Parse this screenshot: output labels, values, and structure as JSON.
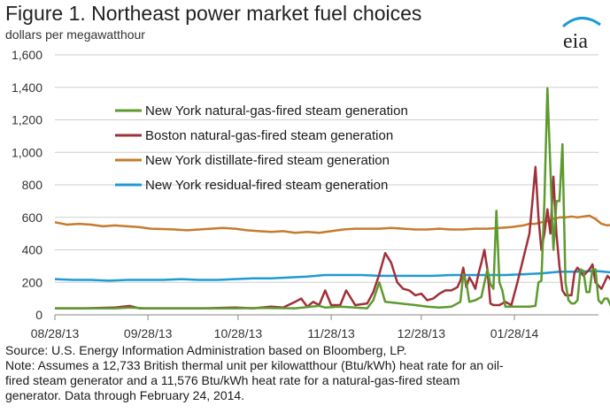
{
  "header": {
    "title": "Figure 1. Northeast power market fuel choices",
    "units": "dollars per megawatthour",
    "logo_text": "eia"
  },
  "footer": {
    "source": "Source:  U.S. Energy Information Administration based on Bloomberg, LP.",
    "note_line1": "Note:   Assumes a 12,733 British thermal unit per kilowatthour  (Btu/kWh) heat rate for an oil-",
    "note_line2": "fired steam generator and a 11,576 Btu/kWh heat rate for a natural-gas-fired steam",
    "note_line3": "generator. Data through February 24, 2014."
  },
  "colors": {
    "ny_gas": "#5d9a2f",
    "boston_gas": "#a0303a",
    "ny_distillate": "#c77b2c",
    "ny_residual": "#1f9ad6",
    "gridline": "#cfcfcf",
    "axis": "#888888",
    "logo_arc": "#1f9ad6"
  },
  "chart_data": {
    "type": "line",
    "x_unit": "days since 08/28/13",
    "xlim": [
      0,
      181
    ],
    "ylim": [
      0,
      1600
    ],
    "yticks": [
      0,
      200,
      400,
      600,
      800,
      1000,
      1200,
      1400,
      1600
    ],
    "ytick_labels": [
      "0",
      "200",
      "400",
      "600",
      "800",
      "1,000",
      "1,200",
      "1,400",
      "1,600"
    ],
    "xticks": [
      0,
      31,
      61,
      92,
      122,
      153
    ],
    "xtick_labels": [
      "08/28/13",
      "09/28/13",
      "10/28/13",
      "11/28/13",
      "12/28/13",
      "01/28/14"
    ],
    "grid": "horizontal",
    "legend_position": "top-left",
    "series": [
      {
        "name": "New York natural-gas-fired steam generation",
        "color_key": "ny_gas",
        "points": [
          [
            0,
            40
          ],
          [
            10,
            40
          ],
          [
            20,
            40
          ],
          [
            25,
            45
          ],
          [
            30,
            40
          ],
          [
            40,
            40
          ],
          [
            50,
            40
          ],
          [
            60,
            40
          ],
          [
            70,
            42
          ],
          [
            80,
            40
          ],
          [
            88,
            55
          ],
          [
            90,
            45
          ],
          [
            95,
            50
          ],
          [
            100,
            45
          ],
          [
            104,
            40
          ],
          [
            106,
            90
          ],
          [
            108,
            200
          ],
          [
            110,
            80
          ],
          [
            115,
            70
          ],
          [
            120,
            60
          ],
          [
            124,
            50
          ],
          [
            128,
            45
          ],
          [
            132,
            50
          ],
          [
            135,
            80
          ],
          [
            136,
            250
          ],
          [
            137,
            200
          ],
          [
            138,
            80
          ],
          [
            140,
            90
          ],
          [
            142,
            110
          ],
          [
            144,
            280
          ],
          [
            145,
            190
          ],
          [
            146,
            160
          ],
          [
            147,
            640
          ],
          [
            148,
            200
          ],
          [
            149,
            150
          ],
          [
            150,
            50
          ],
          [
            155,
            50
          ],
          [
            158,
            50
          ],
          [
            160,
            55
          ],
          [
            161,
            200
          ],
          [
            162,
            210
          ],
          [
            163,
            700
          ],
          [
            164,
            1395
          ],
          [
            165,
            900
          ],
          [
            166,
            400
          ],
          [
            167,
            700
          ],
          [
            168,
            700
          ],
          [
            169,
            1050
          ],
          [
            170,
            200
          ],
          [
            171,
            90
          ],
          [
            172,
            70
          ],
          [
            173,
            70
          ],
          [
            174,
            90
          ],
          [
            175,
            280
          ],
          [
            176,
            270
          ],
          [
            177,
            140
          ],
          [
            178,
            140
          ],
          [
            179,
            280
          ],
          [
            180,
            280
          ],
          [
            181,
            90
          ],
          [
            182,
            70
          ],
          [
            183,
            100
          ],
          [
            184,
            100
          ],
          [
            185,
            60
          ],
          [
            186,
            70
          ],
          [
            188,
            85
          ],
          [
            190,
            85
          ]
        ]
      },
      {
        "name": "Boston natural-gas-fired steam generation",
        "color_key": "boston_gas",
        "points": [
          [
            0,
            40
          ],
          [
            10,
            40
          ],
          [
            20,
            45
          ],
          [
            25,
            55
          ],
          [
            28,
            40
          ],
          [
            40,
            40
          ],
          [
            50,
            40
          ],
          [
            60,
            45
          ],
          [
            66,
            40
          ],
          [
            72,
            50
          ],
          [
            76,
            45
          ],
          [
            80,
            80
          ],
          [
            82,
            100
          ],
          [
            84,
            50
          ],
          [
            86,
            80
          ],
          [
            88,
            60
          ],
          [
            90,
            150
          ],
          [
            92,
            60
          ],
          [
            95,
            60
          ],
          [
            97,
            150
          ],
          [
            100,
            60
          ],
          [
            104,
            70
          ],
          [
            106,
            140
          ],
          [
            108,
            250
          ],
          [
            110,
            380
          ],
          [
            112,
            320
          ],
          [
            114,
            200
          ],
          [
            116,
            160
          ],
          [
            118,
            150
          ],
          [
            120,
            120
          ],
          [
            122,
            130
          ],
          [
            124,
            90
          ],
          [
            126,
            100
          ],
          [
            128,
            130
          ],
          [
            130,
            150
          ],
          [
            132,
            150
          ],
          [
            134,
            170
          ],
          [
            135,
            210
          ],
          [
            136,
            290
          ],
          [
            137,
            170
          ],
          [
            138,
            230
          ],
          [
            139,
            200
          ],
          [
            140,
            160
          ],
          [
            141,
            250
          ],
          [
            142,
            320
          ],
          [
            143,
            400
          ],
          [
            144,
            280
          ],
          [
            145,
            70
          ],
          [
            146,
            60
          ],
          [
            148,
            60
          ],
          [
            150,
            80
          ],
          [
            152,
            60
          ],
          [
            154,
            200
          ],
          [
            156,
            350
          ],
          [
            158,
            500
          ],
          [
            159,
            700
          ],
          [
            160,
            910
          ],
          [
            161,
            600
          ],
          [
            162,
            400
          ],
          [
            163,
            500
          ],
          [
            164,
            650
          ],
          [
            165,
            500
          ],
          [
            166,
            850
          ],
          [
            167,
            500
          ],
          [
            168,
            300
          ],
          [
            169,
            150
          ],
          [
            170,
            120
          ],
          [
            172,
            120
          ],
          [
            173,
            260
          ],
          [
            174,
            290
          ],
          [
            176,
            240
          ],
          [
            177,
            260
          ],
          [
            178,
            280
          ],
          [
            179,
            310
          ],
          [
            180,
            200
          ],
          [
            182,
            160
          ],
          [
            184,
            240
          ],
          [
            185,
            220
          ],
          [
            186,
            140
          ],
          [
            187,
            120
          ],
          [
            188,
            200
          ],
          [
            190,
            250
          ]
        ]
      },
      {
        "name": "New York distillate-fired steam generation",
        "color_key": "ny_distillate",
        "points": [
          [
            0,
            570
          ],
          [
            4,
            555
          ],
          [
            8,
            560
          ],
          [
            12,
            555
          ],
          [
            16,
            545
          ],
          [
            20,
            550
          ],
          [
            24,
            545
          ],
          [
            28,
            540
          ],
          [
            32,
            530
          ],
          [
            36,
            528
          ],
          [
            40,
            525
          ],
          [
            44,
            520
          ],
          [
            48,
            525
          ],
          [
            52,
            530
          ],
          [
            56,
            535
          ],
          [
            60,
            530
          ],
          [
            64,
            520
          ],
          [
            68,
            515
          ],
          [
            72,
            510
          ],
          [
            76,
            515
          ],
          [
            80,
            505
          ],
          [
            84,
            510
          ],
          [
            88,
            505
          ],
          [
            92,
            515
          ],
          [
            96,
            525
          ],
          [
            100,
            530
          ],
          [
            104,
            530
          ],
          [
            108,
            530
          ],
          [
            112,
            535
          ],
          [
            116,
            530
          ],
          [
            120,
            525
          ],
          [
            124,
            525
          ],
          [
            128,
            530
          ],
          [
            132,
            525
          ],
          [
            136,
            525
          ],
          [
            140,
            530
          ],
          [
            144,
            530
          ],
          [
            148,
            535
          ],
          [
            152,
            540
          ],
          [
            156,
            550
          ],
          [
            158,
            560
          ],
          [
            160,
            560
          ],
          [
            162,
            570
          ],
          [
            164,
            575
          ],
          [
            166,
            590
          ],
          [
            168,
            600
          ],
          [
            170,
            600
          ],
          [
            172,
            605
          ],
          [
            174,
            600
          ],
          [
            176,
            605
          ],
          [
            178,
            610
          ],
          [
            180,
            590
          ],
          [
            182,
            560
          ],
          [
            184,
            550
          ],
          [
            186,
            555
          ],
          [
            188,
            560
          ],
          [
            190,
            575
          ],
          [
            192,
            560
          ]
        ]
      },
      {
        "name": "New York residual-fired steam generation",
        "color_key": "ny_residual",
        "points": [
          [
            0,
            220
          ],
          [
            6,
            215
          ],
          [
            12,
            215
          ],
          [
            18,
            210
          ],
          [
            24,
            215
          ],
          [
            30,
            215
          ],
          [
            36,
            215
          ],
          [
            42,
            220
          ],
          [
            48,
            215
          ],
          [
            54,
            215
          ],
          [
            60,
            220
          ],
          [
            66,
            225
          ],
          [
            72,
            225
          ],
          [
            78,
            230
          ],
          [
            84,
            235
          ],
          [
            90,
            245
          ],
          [
            96,
            245
          ],
          [
            102,
            245
          ],
          [
            108,
            240
          ],
          [
            114,
            240
          ],
          [
            120,
            240
          ],
          [
            126,
            240
          ],
          [
            132,
            245
          ],
          [
            138,
            245
          ],
          [
            144,
            245
          ],
          [
            150,
            245
          ],
          [
            156,
            250
          ],
          [
            162,
            255
          ],
          [
            168,
            265
          ],
          [
            174,
            265
          ],
          [
            180,
            270
          ],
          [
            186,
            260
          ],
          [
            192,
            255
          ]
        ]
      }
    ]
  }
}
